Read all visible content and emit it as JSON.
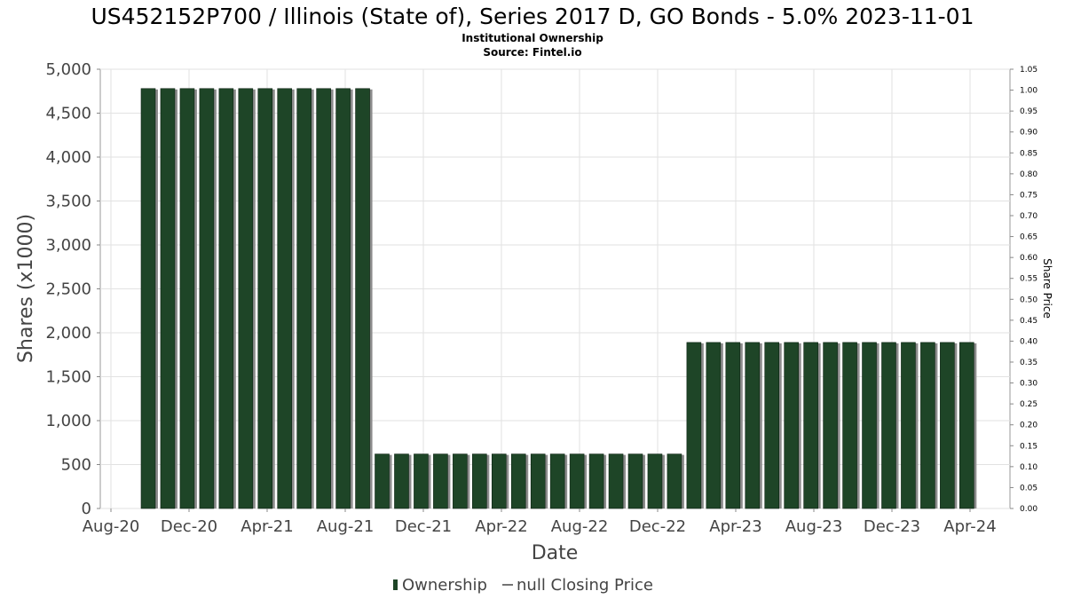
{
  "chart_data": {
    "type": "bar",
    "title": "US452152P700 / Illinois (State of), Series 2017 D, GO Bonds - 5.0% 2023-11-01",
    "subtitle_lines": [
      "Institutional Ownership",
      "Source: Fintel.io"
    ],
    "xlabel": "Date",
    "ylabel": "Shares (x1000)",
    "y2label": "Share Price",
    "x_tick_labels": [
      "Aug-20",
      "Dec-20",
      "Apr-21",
      "Aug-21",
      "Dec-21",
      "Apr-22",
      "Aug-22",
      "Dec-22",
      "Apr-23",
      "Aug-23",
      "Dec-23",
      "Apr-24"
    ],
    "y_tick_labels": [
      "0",
      "500",
      "1,000",
      "1,500",
      "2,000",
      "2,500",
      "3,000",
      "3,500",
      "4,000",
      "4,500",
      "5,000"
    ],
    "y2_tick_labels": [
      "0.00",
      "0.05",
      "0.10",
      "0.15",
      "0.20",
      "0.25",
      "0.30",
      "0.35",
      "0.40",
      "0.45",
      "0.50",
      "0.55",
      "0.60",
      "0.65",
      "0.70",
      "0.75",
      "0.80",
      "0.85",
      "0.90",
      "0.95",
      "1.00",
      "1.05"
    ],
    "ylim": [
      0,
      5000
    ],
    "y2lim": [
      0,
      1.05
    ],
    "grid": true,
    "legend_position": "bottom-center",
    "legend": [
      {
        "label": "Ownership",
        "kind": "bar"
      },
      {
        "label": "null Closing Price",
        "kind": "line"
      }
    ],
    "bar_color": "#1e4527",
    "values": [
      4780,
      4780,
      4780,
      4780,
      4780,
      4780,
      4780,
      4780,
      4780,
      4780,
      4780,
      4780,
      620,
      620,
      620,
      620,
      620,
      620,
      620,
      620,
      620,
      620,
      620,
      620,
      620,
      620,
      620,
      620,
      1890,
      1890,
      1890,
      1890,
      1890,
      1890,
      1890,
      1890,
      1890,
      1890,
      1890,
      1890,
      1890,
      1890,
      1890
    ]
  }
}
